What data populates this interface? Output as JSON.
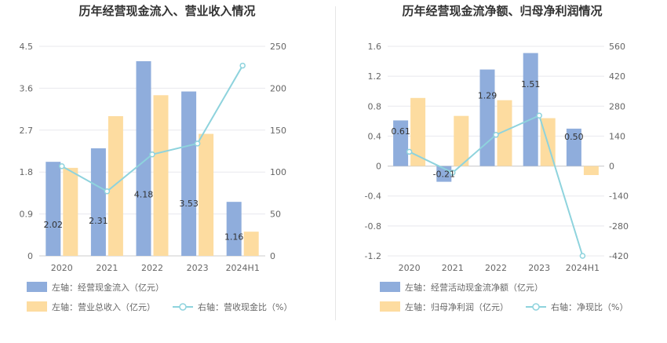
{
  "colors": {
    "bar1": "#8FADDC",
    "bar2": "#FDDCA0",
    "line": "#8ED3DD",
    "grid": "#E8E8EE",
    "axis": "#CCCCCC"
  },
  "chart_data": [
    {
      "type": "bar",
      "title": "历年经营现金流入、营业收入情况",
      "categories": [
        "2020",
        "2021",
        "2022",
        "2023",
        "2024H1"
      ],
      "left_axis": {
        "ylim": [
          0,
          4.5
        ],
        "ticks": [
          "0",
          "0.9",
          "1.8",
          "2.7",
          "3.6",
          "4.5"
        ]
      },
      "right_axis": {
        "ylim": [
          0,
          250
        ],
        "ticks": [
          "0",
          "50",
          "100",
          "150",
          "200",
          "250"
        ]
      },
      "series": [
        {
          "name": "左轴：经营现金流入（亿元）",
          "axis": "left",
          "kind": "bar",
          "values": [
            2.02,
            2.31,
            4.18,
            3.53,
            1.16
          ],
          "labels": [
            "2.02",
            "2.31",
            "4.18",
            "3.53",
            "1.16"
          ]
        },
        {
          "name": "左轴：营业总收入（亿元）",
          "axis": "left",
          "kind": "bar",
          "values": [
            1.89,
            3.0,
            3.45,
            2.62,
            0.52
          ]
        },
        {
          "name": "右轴：营收现金比（%）",
          "axis": "right",
          "kind": "line",
          "values": [
            107,
            77,
            121,
            134,
            227
          ]
        }
      ],
      "legend_placement": "bottom"
    },
    {
      "type": "bar",
      "title": "历年经营现金流净额、归母净利润情况",
      "categories": [
        "2020",
        "2021",
        "2022",
        "2023",
        "2024H1"
      ],
      "left_axis": {
        "ylim": [
          -1.2,
          1.6
        ],
        "ticks": [
          "-1.2",
          "-0.8",
          "-0.4",
          "0",
          "0.4",
          "0.8",
          "1.2",
          "1.6"
        ]
      },
      "right_axis": {
        "ylim": [
          -420,
          560
        ],
        "ticks": [
          "-420",
          "-280",
          "-140",
          "0",
          "140",
          "280",
          "420",
          "560"
        ]
      },
      "series": [
        {
          "name": "左轴：经营活动现金流净额（亿元）",
          "axis": "left",
          "kind": "bar",
          "values": [
            0.61,
            -0.21,
            1.29,
            1.51,
            0.5
          ],
          "labels": [
            "0.61",
            "-0.21",
            "1.29",
            "1.51",
            "0.50"
          ]
        },
        {
          "name": "左轴：归母净利润（亿元）",
          "axis": "left",
          "kind": "bar",
          "values": [
            0.91,
            0.67,
            0.88,
            0.64,
            -0.12
          ]
        },
        {
          "name": "右轴：净现比（%）",
          "axis": "right",
          "kind": "line",
          "values": [
            67,
            -31,
            146,
            236,
            -420
          ]
        }
      ],
      "legend_placement": "bottom"
    }
  ]
}
